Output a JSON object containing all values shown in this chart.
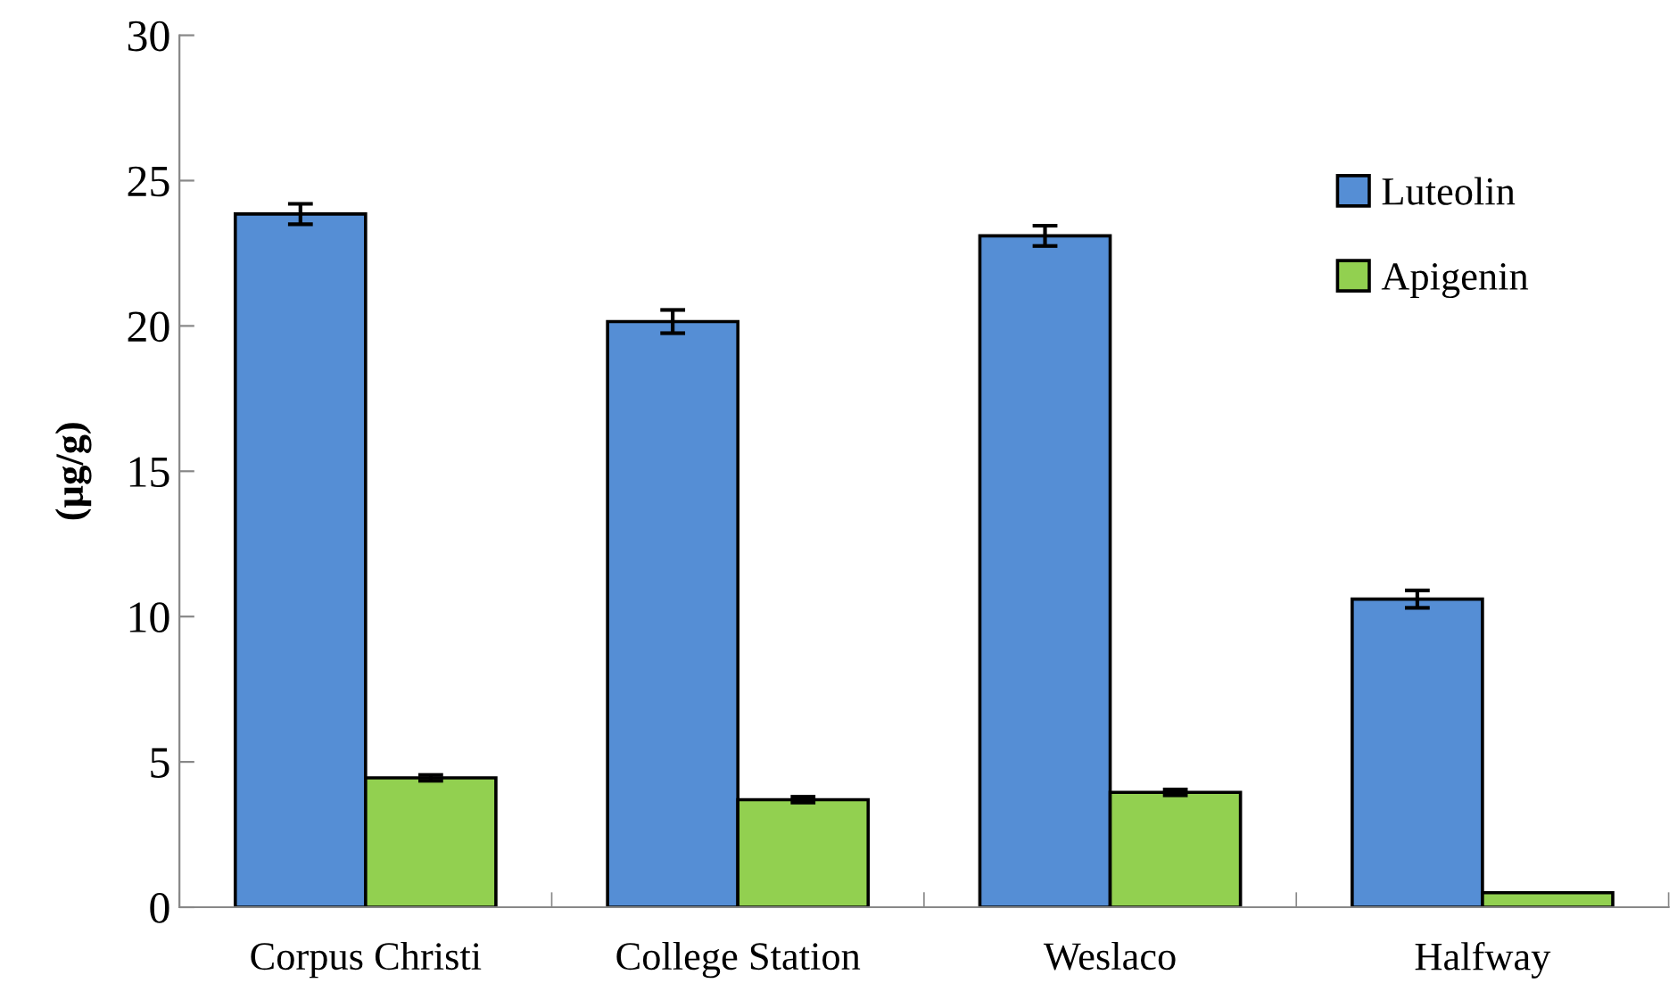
{
  "chart_data": {
    "type": "bar",
    "ylabel": "(µg/g)",
    "categories": [
      "Corpus Christi",
      "College Station",
      "Weslaco",
      "Halfway"
    ],
    "series": [
      {
        "name": "Luteolin",
        "color": "#558ed5",
        "values": [
          23.85,
          20.15,
          23.1,
          10.6
        ],
        "errors": [
          0.35,
          0.4,
          0.35,
          0.3
        ]
      },
      {
        "name": "Apigenin",
        "color": "#92d050",
        "values": [
          4.45,
          3.7,
          3.95,
          0.5
        ],
        "errors": [
          0.1,
          0.1,
          0.1,
          null
        ]
      }
    ],
    "ylim": [
      0,
      30
    ],
    "yticks": [
      0,
      5,
      10,
      15,
      20,
      25,
      30
    ],
    "grid": false,
    "legend": "top right"
  }
}
